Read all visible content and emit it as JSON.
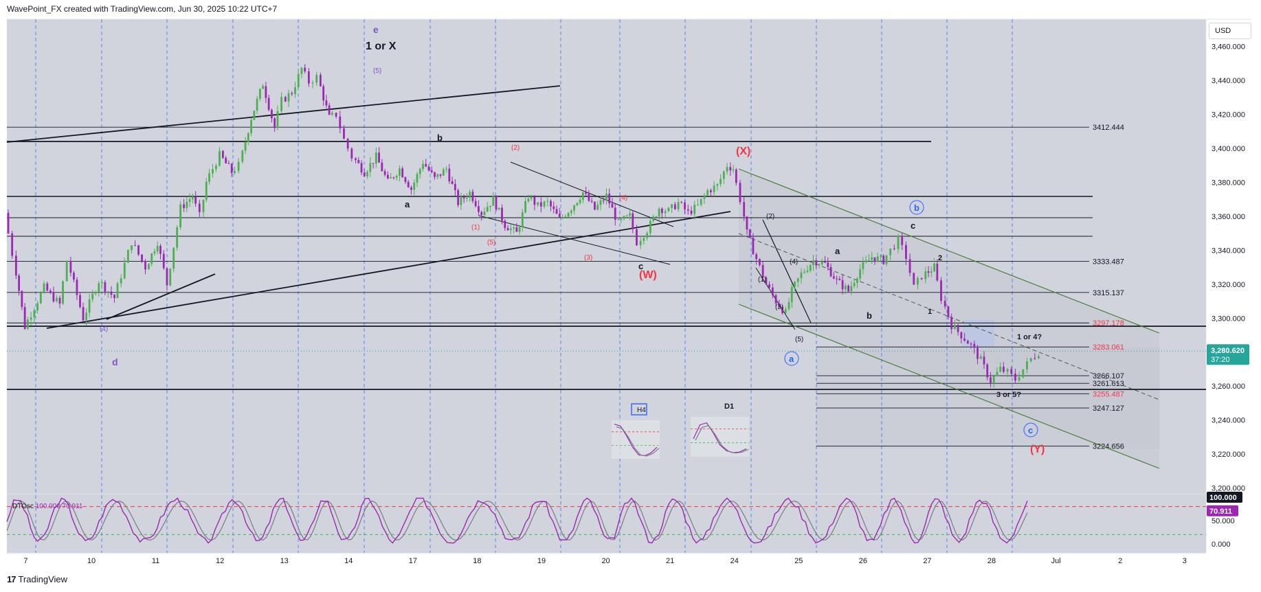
{
  "header": {
    "attribution": "WavePoint_FX created with TradingView.com, Jun 30, 2025 10:22 UTC+7"
  },
  "footer": {
    "logo": "17",
    "brand": "TradingView"
  },
  "controls": {
    "currency": "USD"
  },
  "chart_data": {
    "type": "candlestick",
    "symbol_note": "",
    "x_ticks": [
      "7",
      "10",
      "11",
      "12",
      "13",
      "14",
      "17",
      "18",
      "19",
      "20",
      "21",
      "24",
      "25",
      "26",
      "27",
      "28",
      "Jul",
      "2",
      "3"
    ],
    "y_ticks": [
      "3,460.000",
      "3,440.000",
      "3,420.000",
      "3,400.000",
      "3,380.000",
      "3,360.000",
      "3,340.000",
      "3,320.000",
      "3,300.000",
      "3,280.000",
      "3,260.000",
      "3,240.000",
      "3,220.000",
      "3,200.000"
    ],
    "ylim": [
      3197,
      3476
    ],
    "price_path": [
      [
        0,
        3362
      ],
      [
        0.4,
        3338
      ],
      [
        1,
        3295
      ],
      [
        2,
        3318
      ],
      [
        2.8,
        3308
      ],
      [
        3.2,
        3334
      ],
      [
        4,
        3300
      ],
      [
        4.8,
        3322
      ],
      [
        5.6,
        3312
      ],
      [
        6.5,
        3345
      ],
      [
        7.2,
        3330
      ],
      [
        7.8,
        3345
      ],
      [
        8.3,
        3320
      ],
      [
        9,
        3365
      ],
      [
        9.6,
        3372
      ],
      [
        10,
        3360
      ],
      [
        10.3,
        3380
      ],
      [
        11,
        3396
      ],
      [
        11.6,
        3386
      ],
      [
        12,
        3390
      ],
      [
        12.6,
        3418
      ],
      [
        13.2,
        3438
      ],
      [
        13.8,
        3412
      ],
      [
        14.2,
        3428
      ],
      [
        14.7,
        3433
      ],
      [
        15.2,
        3447
      ],
      [
        15.6,
        3439
      ],
      [
        16,
        3442
      ],
      [
        16.6,
        3418
      ],
      [
        17,
        3420
      ],
      [
        17.4,
        3405
      ],
      [
        17.8,
        3395
      ],
      [
        18.4,
        3386
      ],
      [
        19,
        3395
      ],
      [
        19.6,
        3380
      ],
      [
        20.2,
        3388
      ],
      [
        20.8,
        3376
      ],
      [
        21.4,
        3392
      ],
      [
        22,
        3382
      ],
      [
        22.6,
        3388
      ],
      [
        23.2,
        3368
      ],
      [
        23.8,
        3374
      ],
      [
        24.4,
        3362
      ],
      [
        25,
        3370
      ],
      [
        25.6,
        3355
      ],
      [
        26.2,
        3350
      ],
      [
        26.8,
        3372
      ],
      [
        27.3,
        3366
      ],
      [
        27.8,
        3368
      ],
      [
        28.4,
        3358
      ],
      [
        29,
        3365
      ],
      [
        29.6,
        3374
      ],
      [
        30.2,
        3364
      ],
      [
        30.8,
        3372
      ],
      [
        31.4,
        3356
      ],
      [
        32,
        3360
      ],
      [
        32.4,
        3345
      ],
      [
        32.9,
        3352
      ],
      [
        33.5,
        3365
      ],
      [
        34,
        3363
      ],
      [
        34.5,
        3368
      ],
      [
        35,
        3362
      ],
      [
        35.5,
        3366
      ],
      [
        36,
        3375
      ],
      [
        36.5,
        3378
      ],
      [
        37,
        3390
      ],
      [
        37.3,
        3388
      ],
      [
        37.7,
        3370
      ],
      [
        38,
        3350
      ],
      [
        38.5,
        3335
      ],
      [
        39,
        3320
      ],
      [
        39.5,
        3310
      ],
      [
        40,
        3303
      ],
      [
        40.3,
        3316
      ],
      [
        40.8,
        3326
      ],
      [
        41.4,
        3334
      ],
      [
        42,
        3332
      ],
      [
        42.6,
        3322
      ],
      [
        43.2,
        3316
      ],
      [
        43.8,
        3329
      ],
      [
        44.4,
        3336
      ],
      [
        45,
        3334
      ],
      [
        45.4,
        3340
      ],
      [
        45.8,
        3346
      ],
      [
        46.2,
        3336
      ],
      [
        46.6,
        3318
      ],
      [
        47,
        3325
      ],
      [
        47.6,
        3330
      ],
      [
        48,
        3312
      ],
      [
        48.5,
        3296
      ],
      [
        49,
        3290
      ],
      [
        49.5,
        3284
      ],
      [
        50,
        3275
      ],
      [
        50.5,
        3263
      ],
      [
        51,
        3270
      ],
      [
        51.4,
        3268
      ],
      [
        51.8,
        3264
      ],
      [
        52.2,
        3270
      ],
      [
        52.6,
        3276
      ],
      [
        53,
        3280
      ]
    ],
    "levels": [
      {
        "value": 3412.444,
        "label": "3412.444",
        "color": "#131722"
      },
      {
        "value": 3333.487,
        "label": "3333.487",
        "color": "#131722"
      },
      {
        "value": 3315.137,
        "label": "3315.137",
        "color": "#131722"
      },
      {
        "value": 3297.178,
        "label": "3297.178",
        "color": "#f23645"
      },
      {
        "value": 3283.061,
        "label": "3283.061",
        "color": "#f23645"
      },
      {
        "value": 3266.107,
        "label": "3266.107",
        "color": "#131722"
      },
      {
        "value": 3261.613,
        "label": "3261.613",
        "color": "#131722"
      },
      {
        "value": 3255.487,
        "label": "3255.487",
        "color": "#f23645"
      },
      {
        "value": 3247.127,
        "label": "3247.127",
        "color": "#131722"
      },
      {
        "value": 3224.656,
        "label": "3224.656",
        "color": "#131722"
      }
    ],
    "current_price": {
      "value": "3,280.620",
      "timer": "37:20",
      "color": "#26a69a"
    },
    "wave_labels": [
      "1 or X",
      "e",
      "(5)",
      "b",
      "a",
      "(2)",
      "(1)",
      "(5)",
      "(4)",
      "(3)",
      "c",
      "(W)",
      "(X)",
      "(2)",
      "(4)",
      "(1)",
      "(3)",
      "(5)",
      "a",
      "a",
      "b",
      "c",
      "b",
      "2",
      "1",
      "1 or 4?",
      "3 or 5?",
      "c",
      "(Y)",
      "d",
      "(4)",
      "H4",
      "D1"
    ],
    "oscillator": {
      "name": "DTOsc",
      "values_text": "100.000  70.911",
      "y_ticks": [
        "100.000",
        "50.000",
        "0.000"
      ],
      "ylim": [
        0,
        100
      ],
      "badge_1": "100.000",
      "badge_2": "70.911",
      "upper_level": 80,
      "lower_level": 20,
      "colors": {
        "fast": "#9c27b0",
        "slow": "#787b86",
        "upper": "#f23645",
        "lower": "#4caf50"
      }
    }
  }
}
